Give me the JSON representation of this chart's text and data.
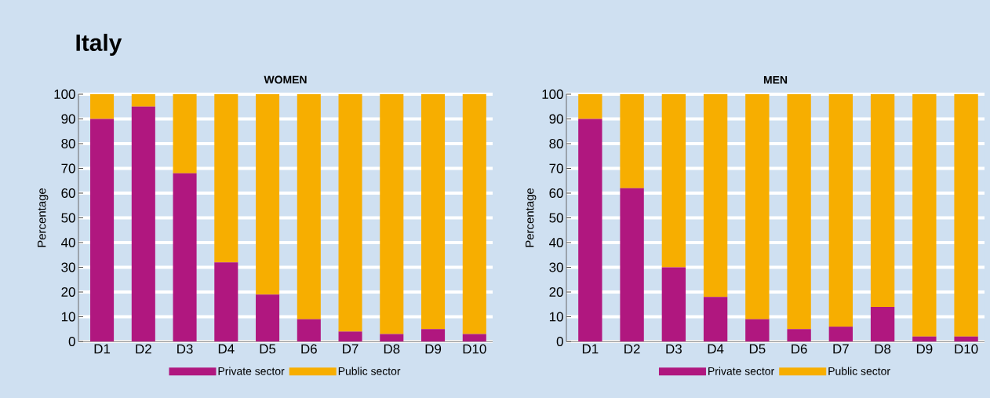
{
  "chart_data": [
    {
      "type": "bar",
      "title": "Italy",
      "subtitle": "WOMEN",
      "ylabel": "Percentage",
      "stacked": true,
      "grid": "y",
      "legend": "bottom",
      "categories": [
        "D1",
        "D2",
        "D3",
        "D4",
        "D5",
        "D6",
        "D7",
        "D8",
        "D9",
        "D10"
      ],
      "ylim": [
        0,
        100
      ],
      "yticks": [
        0,
        10,
        20,
        30,
        40,
        50,
        60,
        70,
        80,
        90,
        100
      ],
      "series": [
        {
          "name": "Private sector",
          "color": "#b0177f",
          "values": [
            90,
            95,
            68,
            32,
            19,
            9,
            4,
            3,
            5,
            3
          ]
        },
        {
          "name": "Public sector",
          "color": "#f7ae00",
          "values": [
            10,
            5,
            32,
            68,
            81,
            91,
            96,
            97,
            95,
            97
          ]
        }
      ]
    },
    {
      "type": "bar",
      "subtitle": "MEN",
      "ylabel": "Percentage",
      "stacked": true,
      "grid": "y",
      "legend": "bottom",
      "categories": [
        "D1",
        "D2",
        "D3",
        "D4",
        "D5",
        "D6",
        "D7",
        "D8",
        "D9",
        "D10"
      ],
      "ylim": [
        0,
        100
      ],
      "yticks": [
        0,
        10,
        20,
        30,
        40,
        50,
        60,
        70,
        80,
        90,
        100
      ],
      "series": [
        {
          "name": "Private sector",
          "color": "#b0177f",
          "values": [
            90,
            62,
            30,
            18,
            9,
            5,
            6,
            14,
            2,
            2
          ]
        },
        {
          "name": "Public sector",
          "color": "#f7ae00",
          "values": [
            10,
            38,
            70,
            82,
            91,
            95,
            94,
            86,
            98,
            98
          ]
        }
      ]
    }
  ]
}
